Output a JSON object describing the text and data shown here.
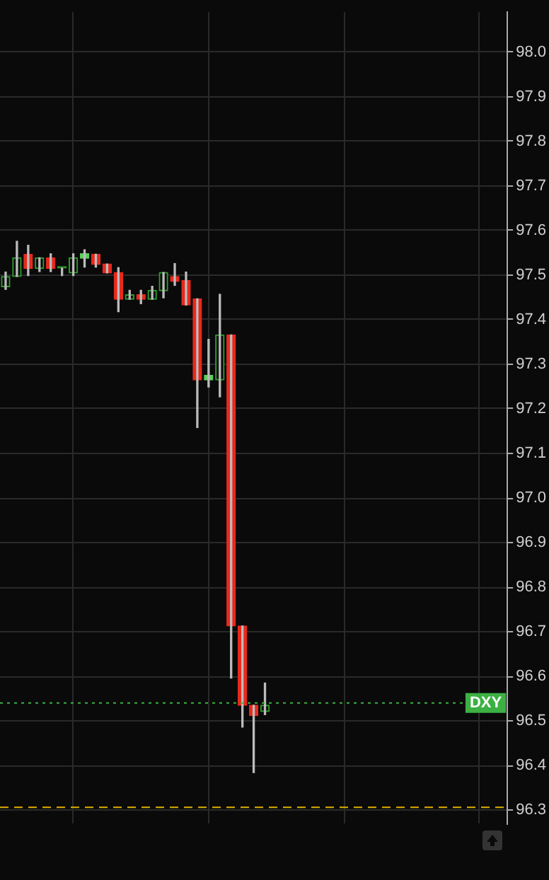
{
  "chart_data": {
    "type": "candlestick",
    "categories": [
      null,
      null,
      null,
      null,
      null,
      null,
      null,
      null,
      null,
      null,
      null,
      null,
      null,
      null,
      null,
      null,
      null,
      null,
      null,
      null,
      null,
      null,
      null,
      null,
      null,
      null,
      null,
      null,
      null,
      null,
      null,
      null,
      null,
      null,
      null,
      null,
      null,
      null,
      null,
      null,
      null,
      null,
      null,
      null,
      null
    ],
    "ohlc": [
      [
        97.474,
        97.507,
        97.468,
        97.497
      ],
      [
        97.497,
        97.576,
        97.497,
        97.539
      ],
      [
        97.547,
        97.567,
        97.499,
        97.515
      ],
      [
        97.515,
        97.539,
        97.508,
        97.539
      ],
      [
        97.539,
        97.548,
        97.508,
        97.515
      ],
      [
        97.516,
        97.516,
        97.499,
        97.516
      ],
      [
        97.505,
        97.548,
        97.499,
        97.539
      ],
      [
        97.538,
        97.557,
        97.518,
        97.548
      ],
      [
        97.547,
        97.547,
        97.518,
        97.524
      ],
      [
        97.525,
        97.525,
        97.505,
        97.505
      ],
      [
        97.506,
        97.517,
        97.418,
        97.446
      ],
      [
        97.446,
        97.466,
        97.446,
        97.456
      ],
      [
        97.456,
        97.466,
        97.436,
        97.446
      ],
      [
        97.446,
        97.475,
        97.446,
        97.466
      ],
      [
        97.465,
        97.506,
        97.449,
        97.506
      ],
      [
        97.497,
        97.526,
        97.477,
        97.486
      ],
      [
        97.488,
        97.507,
        97.433,
        97.433
      ],
      [
        97.447,
        97.447,
        97.158,
        97.265
      ],
      [
        97.265,
        97.356,
        97.249,
        97.275
      ],
      [
        97.265,
        97.457,
        97.227,
        97.366
      ],
      [
        97.366,
        97.366,
        96.596,
        96.713
      ],
      [
        96.713,
        96.713,
        96.486,
        96.535
      ],
      [
        96.535,
        96.535,
        96.384,
        96.512
      ],
      [
        96.521,
        96.585,
        96.514,
        96.535
      ],
      null,
      null,
      null,
      null,
      null,
      null,
      null,
      null,
      null,
      null,
      null,
      null,
      null,
      null,
      null,
      null,
      null,
      null,
      null,
      null,
      null
    ],
    "colors": [
      "#2e9e2e",
      "#2e9e2e",
      "#e8291c",
      "#2e9e2e",
      "#e8291c",
      "#2e9e2e",
      "#2e9e2e",
      "#5ccf5c",
      "#e8291c",
      "#e8291c",
      "#e8291c",
      "#2e9e2e",
      "#e8291c",
      "#2e9e2e",
      "#2e9e2e",
      "#e8291c",
      "#e8291c",
      "#e8291c",
      "#5ccf5c",
      "#2e9e2e",
      "#e8291c",
      "#e8291c",
      "#e8291c",
      "#2e9e2e",
      null,
      null,
      null,
      null,
      null,
      null,
      null,
      null,
      null,
      null,
      null,
      null,
      null,
      null,
      null,
      null,
      null,
      null,
      null,
      null,
      null
    ],
    "ylim": [
      96.27,
      98.09
    ],
    "yticks": [
      96.3,
      96.4,
      96.5,
      96.6,
      96.7,
      96.8,
      96.9,
      {
        "value": 97,
        "label": "97.0"
      },
      97.1,
      97.2,
      97.3,
      97.4,
      97.5,
      97.6,
      97.7,
      97.8,
      97.9,
      {
        "value": 98,
        "label": "98.0"
      }
    ],
    "grid": true,
    "ref_lines": [
      {
        "axis": "y",
        "value": 96.54,
        "label": "DXY",
        "color": "#3cb043",
        "line_style": "dotted"
      },
      {
        "axis": "y",
        "value": 96.306,
        "color": "#e0b000",
        "line_style": "dashed"
      }
    ]
  }
}
